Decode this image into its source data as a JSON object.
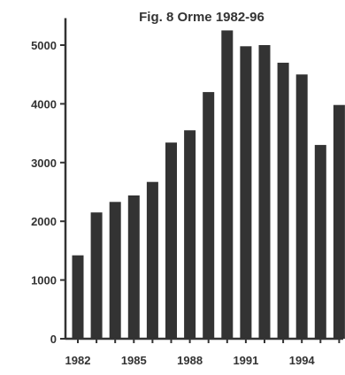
{
  "chart_data": {
    "type": "bar",
    "title": "Fig. 8 Orme 1982-96",
    "xlabel": "",
    "ylabel": "",
    "categories": [
      "1982",
      "1983",
      "1984",
      "1985",
      "1986",
      "1987",
      "1988",
      "1989",
      "1990",
      "1991",
      "1992",
      "1993",
      "1994",
      "1995",
      "1996"
    ],
    "values": [
      1420,
      2150,
      2330,
      2440,
      2670,
      3340,
      3550,
      4200,
      5250,
      4980,
      5000,
      4700,
      4500,
      3300,
      3980
    ],
    "x_tick_labels": [
      "1982",
      "1985",
      "1988",
      "1991",
      "1994"
    ],
    "y_ticks": [
      0,
      1000,
      2000,
      3000,
      4000,
      5000
    ],
    "y_tick_labels": [
      "0",
      "1000",
      "2000",
      "3000",
      "4000",
      "5000"
    ],
    "ylim": [
      0,
      5400
    ],
    "grid": false,
    "bar_color": "#333333",
    "axis_color": "#333333"
  }
}
